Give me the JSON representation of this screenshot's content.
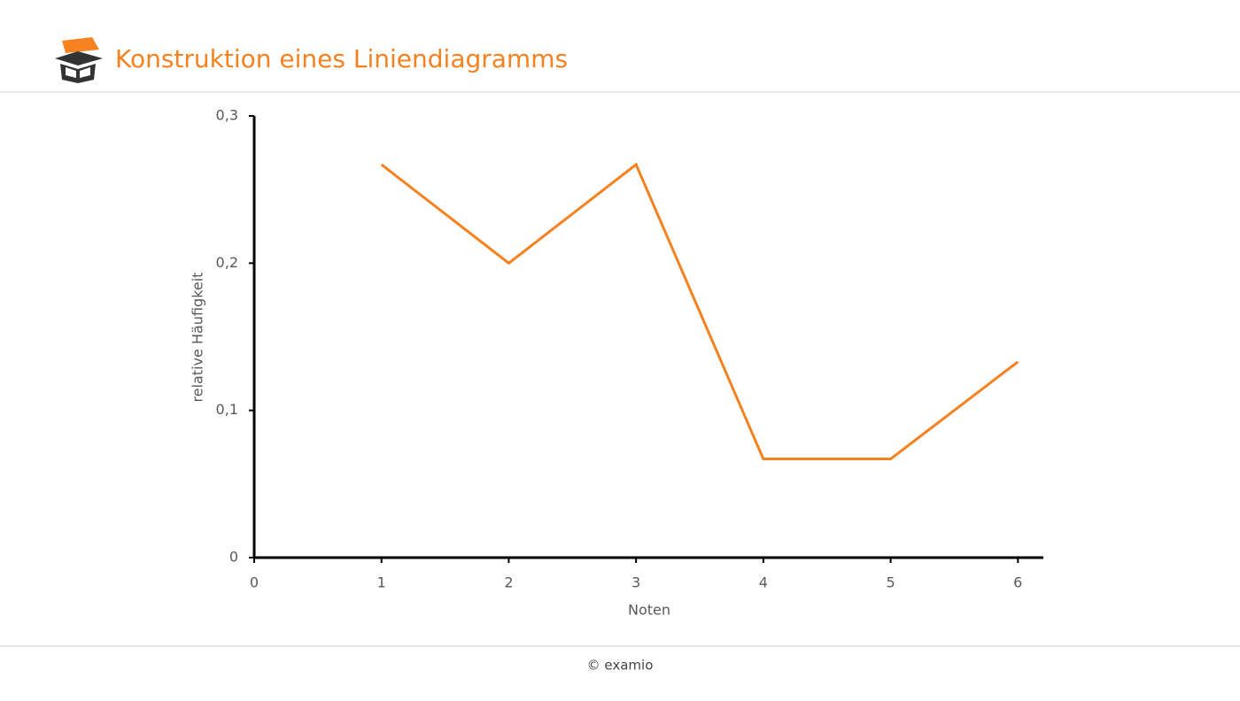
{
  "header": {
    "title": "Konstruktion eines Liniendiagramms"
  },
  "footer": {
    "text": "© examio"
  },
  "chart_data": {
    "type": "line",
    "x_label": "Noten",
    "y_label": "relative Häufigkeit",
    "x": [
      1,
      2,
      3,
      4,
      5,
      6
    ],
    "values": [
      0.267,
      0.2,
      0.267,
      0.067,
      0.067,
      0.133
    ],
    "color": "#f5811f",
    "xlim": [
      0,
      6.2
    ],
    "xticks": [
      0,
      1,
      2,
      3,
      4,
      5,
      6
    ],
    "ylim": [
      0,
      0.3
    ],
    "yticks": [
      0,
      {
        "value": 0.1,
        "label": "0,1"
      },
      {
        "value": 0.2,
        "label": "0,2"
      },
      {
        "value": 0.3,
        "label": "0,3"
      }
    ],
    "grid": false
  }
}
